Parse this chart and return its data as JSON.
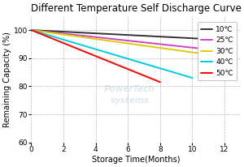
{
  "title": "Different Temperature Self Discharge Curve",
  "xlabel": "Storage Time(Months)",
  "ylabel": "Remaining Capacity (%)",
  "xlim": [
    0,
    13
  ],
  "ylim": [
    60,
    105
  ],
  "xticks": [
    0,
    2,
    4,
    6,
    8,
    10,
    12
  ],
  "yticks": [
    60,
    70,
    80,
    90,
    100
  ],
  "series": [
    {
      "label": "10℃",
      "color": "#333333",
      "points_x": [
        0,
        12
      ],
      "points_y": [
        100,
        96.5
      ]
    },
    {
      "label": "25℃",
      "color": "#cc44cc",
      "points_x": [
        0,
        12
      ],
      "points_y": [
        100,
        92.5
      ]
    },
    {
      "label": "30℃",
      "color": "#ddcc00",
      "points_x": [
        0,
        12
      ],
      "points_y": [
        100,
        90.5
      ]
    },
    {
      "label": "40℃",
      "color": "#00ccdd",
      "points_x": [
        0,
        10
      ],
      "points_y": [
        100,
        83.0
      ]
    },
    {
      "label": "50℃",
      "color": "#ff0000",
      "points_x": [
        0,
        8
      ],
      "points_y": [
        100,
        81.5
      ]
    }
  ],
  "grid_color": "#bbbbbb",
  "background_color": "#ffffff",
  "title_fontsize": 8.5,
  "axis_fontsize": 7,
  "tick_fontsize": 6.5,
  "legend_fontsize": 6.5,
  "linewidth": 1.4
}
